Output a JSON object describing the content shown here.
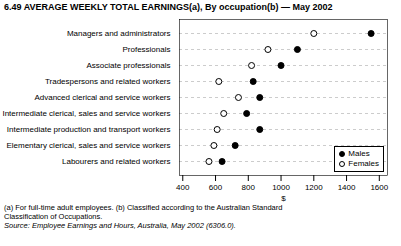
{
  "chart_data": {
    "type": "dot",
    "orientation": "horizontal",
    "title": "6.49  AVERAGE WEEKLY TOTAL EARNINGS(a), By occupation(b) — May 2002",
    "categories": [
      "Managers and administrators",
      "Professionals",
      "Associate professionals",
      "Tradespersons and related workers",
      "Advanced clerical and service workers",
      "Intermediate clerical, sales and service workers",
      "Intermediate production and transport workers",
      "Elementary clerical, sales and service workers",
      "Labourers and related workers"
    ],
    "series": [
      {
        "name": "Males",
        "color": "black",
        "marker": "circle",
        "values": [
          1550,
          1100,
          1000,
          830,
          870,
          790,
          870,
          720,
          640
        ]
      },
      {
        "name": "Females",
        "color": "black",
        "marker": "open_circle",
        "values": [
          1200,
          920,
          820,
          620,
          740,
          650,
          610,
          590,
          560
        ]
      }
    ],
    "xlabel": "$",
    "xlim": [
      380,
      1650
    ],
    "xticks": [
      400,
      600,
      800,
      1000,
      1200,
      1400,
      1600
    ],
    "grid": true,
    "legend": "lower right",
    "annotations": [
      "(a) For full-time adult employees.  (b) Classified according to the Australian Standard",
      "Classification of Occupations.",
      "Source: Employee Earnings and Hours, Australia, May 2002 (6306.0)."
    ]
  }
}
